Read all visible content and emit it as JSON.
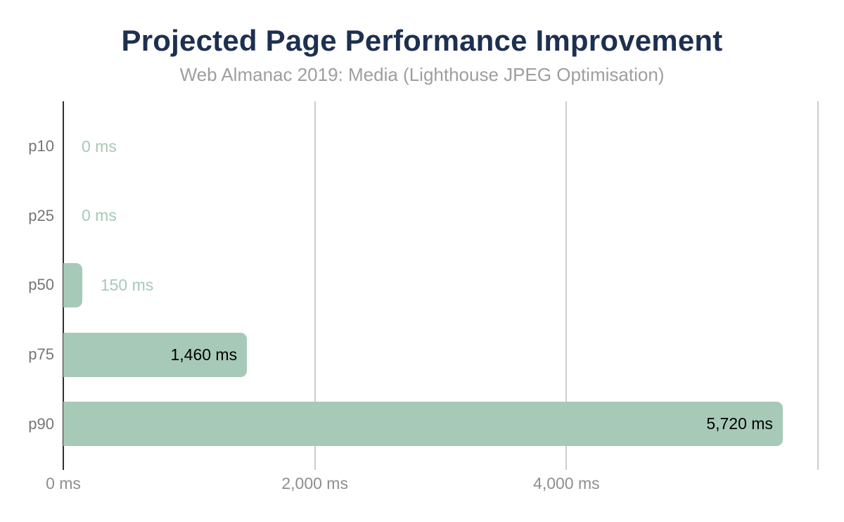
{
  "title": "Projected Page Performance Improvement",
  "subtitle": "Web Almanac 2019: Media (Lighthouse JPEG Optimisation)",
  "chart_data": {
    "type": "bar",
    "orientation": "horizontal",
    "title": "Projected Page Performance Improvement",
    "subtitle": "Web Almanac 2019: Media (Lighthouse JPEG Optimisation)",
    "categories": [
      "p10",
      "p25",
      "p50",
      "p75",
      "p90"
    ],
    "values": [
      0,
      0,
      150,
      1460,
      5720
    ],
    "value_labels": [
      "0 ms",
      "0 ms",
      "150 ms",
      "1,460 ms",
      "5,720 ms"
    ],
    "xlabel": "",
    "ylabel": "",
    "xlim": [
      0,
      6000
    ],
    "x_ticks": [
      {
        "value": 0,
        "label": "0 ms"
      },
      {
        "value": 2000,
        "label": "2,000 ms"
      },
      {
        "value": 4000,
        "label": "4,000 ms"
      },
      {
        "value": 6000,
        "label": ""
      }
    ],
    "grid": true,
    "legend": false,
    "colors": {
      "background": "#ffffff",
      "bar": "#a7c9b8",
      "title": "#1e3050",
      "subtitle": "#9e9e9e",
      "category_label": "#757575",
      "tick_label": "#8e8e8e",
      "value_outside": "#a7c9b8",
      "value_inside": "#000000",
      "gridline": "#cccccc",
      "axis_line": "#2f2f2f"
    }
  }
}
